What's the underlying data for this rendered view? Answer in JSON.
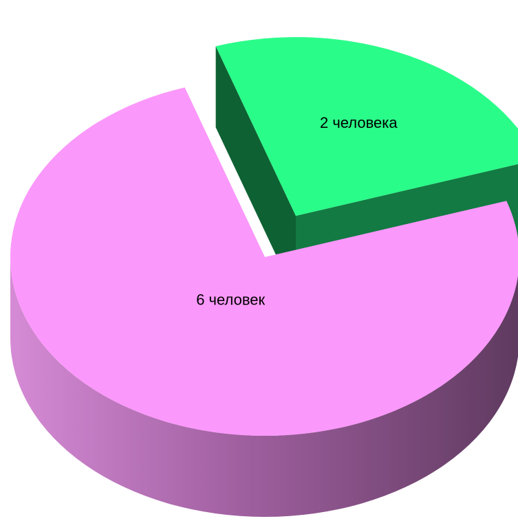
{
  "chart_data": {
    "type": "pie",
    "style": "3d-exploded",
    "title": "",
    "categories": [
      "2 человека",
      "6 человек"
    ],
    "values": [
      2,
      6
    ],
    "exploded": [
      true,
      false
    ],
    "legend": "none",
    "colors": {
      "slices": [
        "#2afc89",
        "#fb98fb"
      ],
      "side_dark": [
        "#0e6133",
        "#623d63"
      ],
      "side_light": [
        "#137a43",
        "#d58bd5"
      ]
    }
  }
}
